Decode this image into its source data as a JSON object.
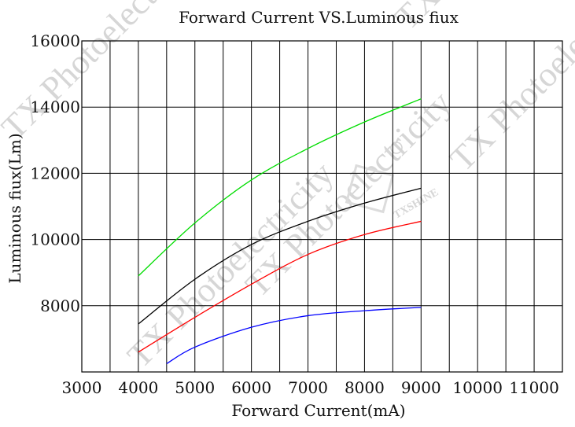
{
  "chart_data": {
    "type": "line",
    "title": "Forward Current VS.Luminous fiux",
    "xlabel": "Forward Current(mA)",
    "ylabel": "Luminous fiux(Lm)",
    "xlim": [
      3000,
      11500
    ],
    "ylim": [
      6000,
      16000
    ],
    "x_ticks": [
      3000,
      4000,
      5000,
      6000,
      7000,
      8000,
      9000,
      10000,
      11000
    ],
    "x_tick_labels": [
      "3000",
      "4000",
      "5000",
      "6000",
      "7000",
      "8000",
      "9000",
      "10000",
      "11000"
    ],
    "y_ticks": [
      8000,
      10000,
      12000,
      14000,
      16000
    ],
    "y_tick_labels": [
      "8000",
      "10000",
      "12000",
      "14000",
      "16000"
    ],
    "x_grid_step": 500,
    "y_grid_step": 2000,
    "grid": true,
    "legend": "none",
    "series": [
      {
        "color": "#00dd00",
        "x": [
          4000,
          5000,
          6000,
          7000,
          8000,
          9000
        ],
        "y": [
          8900,
          10500,
          11800,
          12750,
          13550,
          14250
        ]
      },
      {
        "color": "#000000",
        "x": [
          4000,
          5000,
          6000,
          7000,
          8000,
          9000
        ],
        "y": [
          7450,
          8800,
          9850,
          10550,
          11100,
          11550
        ]
      },
      {
        "color": "#ff0000",
        "x": [
          4000,
          5000,
          6000,
          7000,
          8000,
          9000
        ],
        "y": [
          6600,
          7650,
          8650,
          9550,
          10150,
          10550
        ]
      },
      {
        "color": "#0000ff",
        "x": [
          4500,
          5000,
          6000,
          7000,
          8000,
          9000
        ],
        "y": [
          6250,
          6750,
          7350,
          7700,
          7850,
          7950
        ]
      }
    ]
  },
  "watermark": {
    "texts": [
      "TX Photoelectricity",
      "TX Photoelectricity",
      "TX Photoelectricity",
      "TX Photoelectricity",
      "TX Photoelectricity"
    ],
    "brand": "TXSHINE"
  }
}
